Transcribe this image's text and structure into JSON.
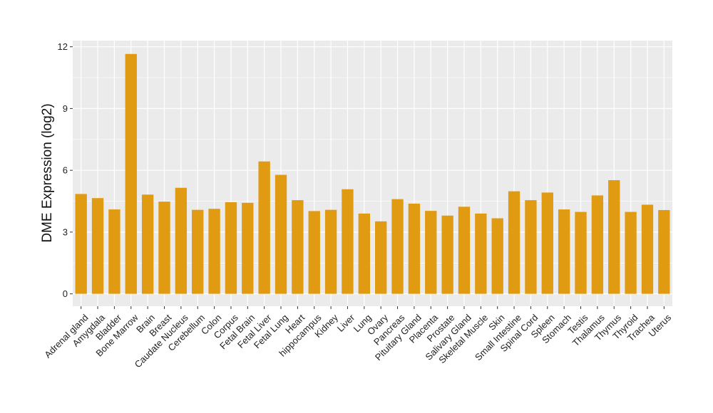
{
  "chart_data": {
    "type": "bar",
    "title": "",
    "xlabel": "",
    "ylabel": "DME Expression (log2)",
    "ylim": [
      -0.6,
      12.3
    ],
    "yticks": [
      0,
      3,
      6,
      9,
      12
    ],
    "grid": true,
    "bar_color": "#E09B13",
    "panel_color": "#EBEBEB",
    "gridline_color": "#FFFFFF",
    "categories": [
      "Adrenal gland",
      "Amygdala",
      "Bladder",
      "Bone Marrow",
      "Brain",
      "Breast",
      "Caudate Nucleus",
      "Cerebellum",
      "Colon",
      "Corpus",
      "Fetal Brain",
      "Fetal Liver",
      "Fetal Lung",
      "Heart",
      "hippocampus",
      "Kidney",
      "Liver",
      "Lung",
      "Ovary",
      "Pancreas",
      "Pituitary Gland",
      "Placenta",
      "Prostate",
      "Salivary Gland",
      "Skeletal Muscle",
      "Skin",
      "Small Intestine",
      "Spinal Cord",
      "Spleen",
      "Stomach",
      "Testis",
      "Thalamus",
      "Thymus",
      "Thyroid",
      "Trachea",
      "Uterus"
    ],
    "values": [
      4.85,
      4.65,
      4.1,
      11.65,
      4.82,
      4.48,
      5.15,
      4.08,
      4.13,
      4.45,
      4.42,
      6.43,
      5.78,
      4.55,
      4.02,
      4.08,
      5.08,
      3.9,
      3.52,
      4.6,
      4.38,
      4.03,
      3.8,
      4.23,
      3.9,
      3.67,
      4.98,
      4.55,
      4.92,
      4.1,
      3.98,
      4.78,
      5.52,
      3.98,
      4.33,
      4.07
    ]
  }
}
